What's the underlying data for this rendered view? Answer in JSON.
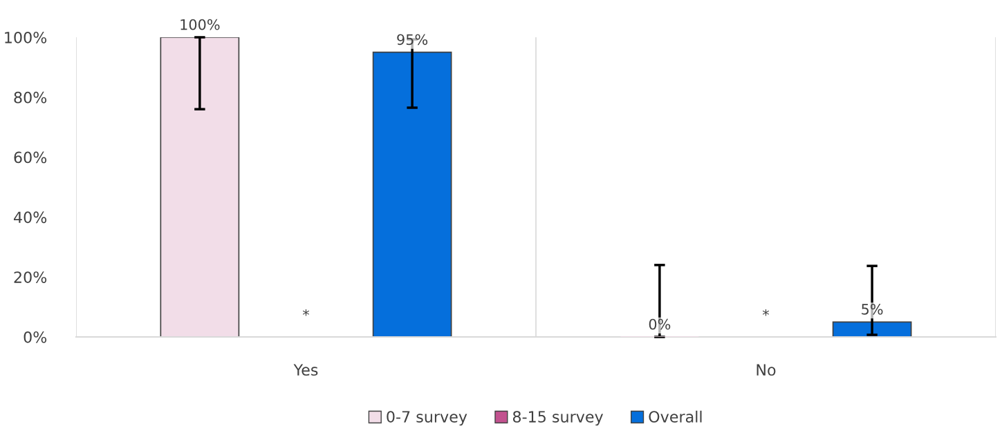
{
  "chart_data": {
    "type": "bar",
    "categories": [
      "Yes",
      "No"
    ],
    "series": [
      {
        "name": "0-7 survey",
        "color": "#f2dde8",
        "values": [
          100,
          0
        ],
        "errors": [
          [
            76,
            100
          ],
          [
            0,
            24
          ]
        ],
        "value_labels": [
          "100%",
          "0%"
        ]
      },
      {
        "name": "8-15 survey",
        "color": "#c2528f",
        "values": [
          null,
          null
        ],
        "value_labels": [
          null,
          null
        ]
      },
      {
        "name": "Overall",
        "color": "#056fdc",
        "values": [
          95,
          5
        ],
        "errors": [
          [
            76.5,
            99.3
          ],
          [
            0.7,
            23.7
          ]
        ],
        "value_labels": [
          "95%",
          "5%"
        ]
      }
    ],
    "ylim": [
      0,
      100
    ],
    "yticks": [
      {
        "value": 0,
        "label": "0%"
      },
      {
        "value": 20,
        "label": "20%"
      },
      {
        "value": 40,
        "label": "40%"
      },
      {
        "value": 60,
        "label": "60%"
      },
      {
        "value": 80,
        "label": "80%"
      },
      {
        "value": 100,
        "label": "100%"
      }
    ],
    "annotations": [
      "*",
      "*"
    ],
    "grid": "x",
    "legend": "bottom"
  }
}
